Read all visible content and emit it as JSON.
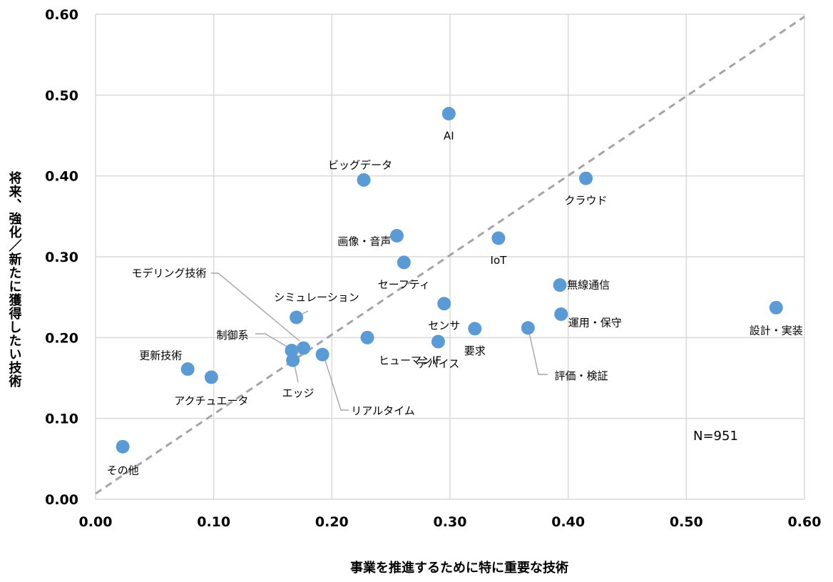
{
  "chart_data": {
    "type": "scatter",
    "title": "",
    "xlabel": "事業を推進するために特に重要な技術",
    "ylabel": "将来、強化／新たに獲得したい技術",
    "xlim": [
      0,
      0.6
    ],
    "ylim": [
      0,
      0.6
    ],
    "x_ticks": [
      "0.00",
      "0.10",
      "0.20",
      "0.30",
      "0.40",
      "0.50",
      "0.60"
    ],
    "y_ticks": [
      "0.00",
      "0.10",
      "0.20",
      "0.30",
      "0.40",
      "0.50",
      "0.60"
    ],
    "grid": true,
    "note": "N=951",
    "reference_line": {
      "style": "dashed",
      "from": [
        0,
        0.007
      ],
      "to": [
        0.6,
        0.597
      ]
    },
    "points": [
      {
        "label": "AI",
        "x": 0.299,
        "y": 0.477
      },
      {
        "label": "ビッグデータ",
        "x": 0.227,
        "y": 0.395
      },
      {
        "label": "クラウド",
        "x": 0.415,
        "y": 0.397
      },
      {
        "label": "画像・音声",
        "x": 0.255,
        "y": 0.326
      },
      {
        "label": "IoT",
        "x": 0.341,
        "y": 0.323
      },
      {
        "label": "セーフティ",
        "x": 0.261,
        "y": 0.293
      },
      {
        "label": "無線通信",
        "x": 0.393,
        "y": 0.265
      },
      {
        "label": "センサ",
        "x": 0.295,
        "y": 0.242
      },
      {
        "label": "運用・保守",
        "x": 0.394,
        "y": 0.229
      },
      {
        "label": "設計・実装",
        "x": 0.576,
        "y": 0.237
      },
      {
        "label": "シミュレーション",
        "x": 0.17,
        "y": 0.225
      },
      {
        "label": "要求",
        "x": 0.321,
        "y": 0.211
      },
      {
        "label": "評価・検証",
        "x": 0.366,
        "y": 0.212
      },
      {
        "label": "デバイス",
        "x": 0.29,
        "y": 0.195
      },
      {
        "label": "ヒューマンIF",
        "x": 0.23,
        "y": 0.2
      },
      {
        "label": "モデリング技術",
        "x": 0.176,
        "y": 0.187
      },
      {
        "label": "制御系",
        "x": 0.166,
        "y": 0.184
      },
      {
        "label": "リアルタイム",
        "x": 0.192,
        "y": 0.179
      },
      {
        "label": "エッジ",
        "x": 0.167,
        "y": 0.172
      },
      {
        "label": "更新技術",
        "x": 0.078,
        "y": 0.161
      },
      {
        "label": "アクチュエータ",
        "x": 0.098,
        "y": 0.151
      },
      {
        "label": "その他",
        "x": 0.023,
        "y": 0.065
      }
    ]
  }
}
